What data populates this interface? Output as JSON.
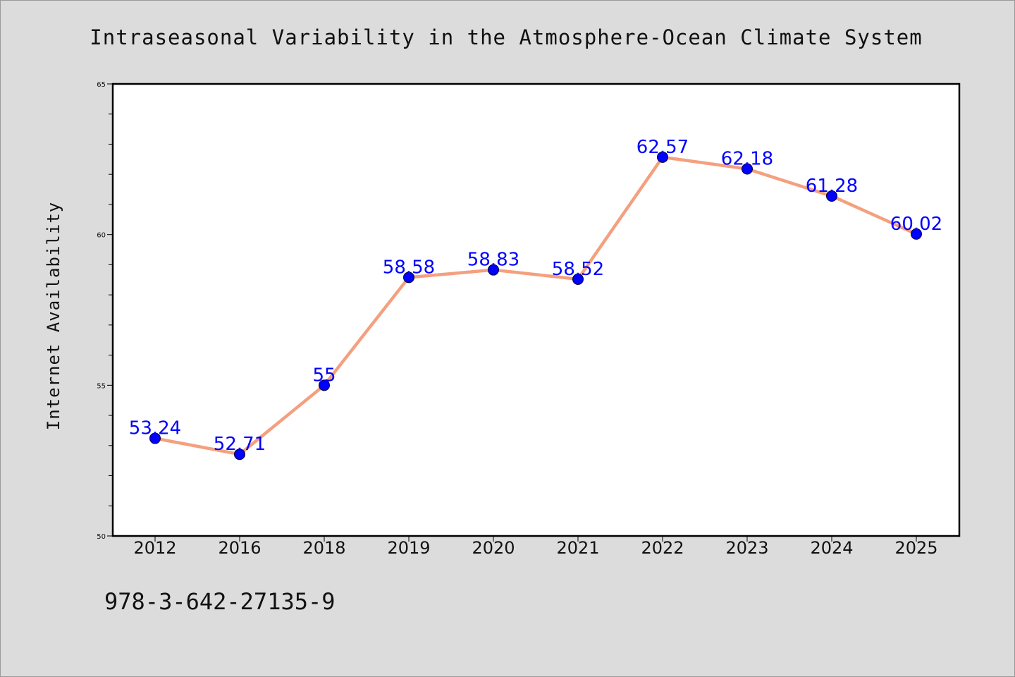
{
  "colors": {
    "background": "#dcdcdc",
    "plot_background": "#ffffff",
    "line": "#f4a07f",
    "marker": "#0000ff",
    "data_label": "#0000ff"
  },
  "footer": {
    "isbn": "978-3-642-27135-9"
  },
  "chart_data": {
    "type": "line",
    "title": "Intraseasonal Variability in the Atmosphere-Ocean Climate System",
    "xlabel": "",
    "ylabel": "Internet Availability",
    "categories": [
      "2012",
      "2016",
      "2018",
      "2019",
      "2020",
      "2021",
      "2022",
      "2023",
      "2024",
      "2025"
    ],
    "series": [
      {
        "values": [
          53.24,
          52.71,
          55,
          58.58,
          58.83,
          58.52,
          62.57,
          62.18,
          61.28,
          60.02
        ],
        "labels": [
          "53.24",
          "52.71",
          "55",
          "58.58",
          "58.83",
          "58.52",
          "62.57",
          "62.18",
          "61.28",
          "60.02"
        ]
      }
    ],
    "ylim": [
      50,
      65
    ],
    "yticks": [
      "50",
      "55",
      "60",
      "65"
    ],
    "grid": false,
    "legend": "none"
  }
}
